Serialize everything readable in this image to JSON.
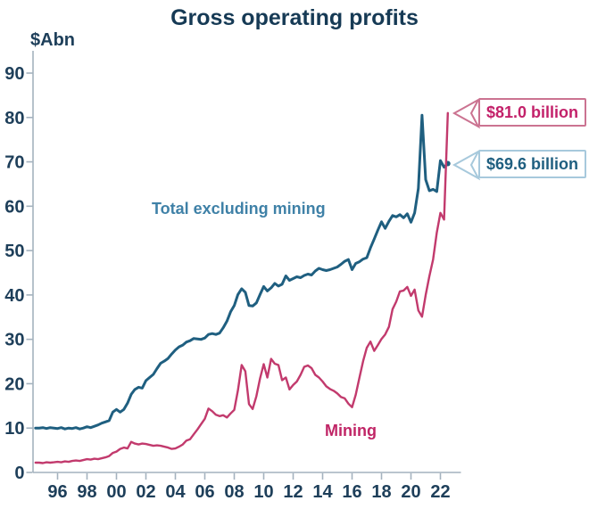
{
  "chart_data": {
    "type": "line",
    "title": "Gross operating profits",
    "ylabel": "$Abn",
    "xlabel": "",
    "ylim": [
      0,
      90
    ],
    "y_ticks": [
      0,
      10,
      20,
      30,
      40,
      50,
      60,
      70,
      80,
      90
    ],
    "x_tick_years": [
      1996,
      1998,
      2000,
      2002,
      2004,
      2006,
      2008,
      2010,
      2012,
      2014,
      2016,
      2018,
      2020,
      2022
    ],
    "x_tick_labels": [
      "96",
      "98",
      "00",
      "02",
      "04",
      "06",
      "08",
      "10",
      "12",
      "14",
      "16",
      "18",
      "20",
      "22"
    ],
    "grid": false,
    "legend_position": "inline-labels",
    "axis_color": "#a4b2be",
    "text_color": "#1e3f5a",
    "x_start": 1994.5,
    "x_step": 0.25,
    "series": [
      {
        "name": "Total excluding mining",
        "color": "#1f5f80",
        "label_color": "#3f81a7",
        "line_width": 3,
        "end_dot": true,
        "final_value_label": "$69.6 billion",
        "values": [
          10.0,
          10.0,
          10.1,
          9.9,
          10.1,
          10.0,
          9.9,
          10.1,
          9.8,
          10.0,
          9.9,
          10.1,
          9.8,
          10.0,
          10.3,
          10.1,
          10.4,
          10.7,
          11.1,
          11.4,
          11.7,
          13.6,
          14.2,
          13.6,
          14.2,
          15.6,
          17.6,
          18.7,
          19.2,
          19.0,
          20.7,
          21.4,
          22.1,
          23.4,
          24.6,
          25.1,
          25.7,
          26.7,
          27.6,
          28.3,
          28.7,
          29.4,
          29.7,
          30.2,
          30.1,
          30.0,
          30.3,
          31.1,
          31.3,
          31.1,
          31.4,
          32.6,
          34.1,
          36.2,
          37.6,
          40.1,
          41.4,
          40.6,
          37.6,
          37.5,
          38.2,
          40.1,
          41.9,
          40.9,
          41.6,
          42.6,
          42.0,
          42.4,
          44.3,
          43.3,
          43.7,
          44.1,
          43.9,
          44.4,
          44.7,
          44.5,
          45.4,
          46.0,
          45.7,
          45.5,
          45.7,
          46.0,
          46.3,
          46.9,
          47.6,
          48.0,
          45.7,
          47.1,
          47.5,
          48.1,
          48.4,
          50.6,
          52.6,
          54.6,
          56.5,
          55.0,
          56.6,
          57.9,
          57.6,
          58.1,
          57.4,
          58.3,
          56.4,
          58.5,
          64.0,
          80.5,
          66.0,
          63.5,
          63.8,
          63.3,
          70.3,
          68.8,
          69.6
        ]
      },
      {
        "name": "Mining",
        "color": "#c23a6d",
        "label_color": "#c02566",
        "line_width": 2.4,
        "end_dot": false,
        "final_value_label": "$81.0 billion",
        "values": [
          2.2,
          2.2,
          2.1,
          2.3,
          2.2,
          2.3,
          2.4,
          2.3,
          2.5,
          2.4,
          2.6,
          2.7,
          2.6,
          2.8,
          3.0,
          2.9,
          3.1,
          3.0,
          3.2,
          3.4,
          3.7,
          4.4,
          4.7,
          5.3,
          5.6,
          5.4,
          6.9,
          6.5,
          6.3,
          6.5,
          6.4,
          6.2,
          6.0,
          6.1,
          6.0,
          5.8,
          5.6,
          5.3,
          5.4,
          5.8,
          6.3,
          7.2,
          7.5,
          8.6,
          9.7,
          10.9,
          12.1,
          14.4,
          13.8,
          13.0,
          12.7,
          12.9,
          12.4,
          13.3,
          14.1,
          18.5,
          24.2,
          22.8,
          15.4,
          14.3,
          17.2,
          21.2,
          24.4,
          21.4,
          25.6,
          24.5,
          24.2,
          20.8,
          21.4,
          18.7,
          19.7,
          20.5,
          22.0,
          23.8,
          24.1,
          23.5,
          22.0,
          21.4,
          20.5,
          19.4,
          18.8,
          18.4,
          17.8,
          17.0,
          16.7,
          15.5,
          14.7,
          17.5,
          21.4,
          25.1,
          28.1,
          29.5,
          27.4,
          28.7,
          30.1,
          31.1,
          32.8,
          36.8,
          38.5,
          40.8,
          41.0,
          41.8,
          39.8,
          41.2,
          36.5,
          35.1,
          40.0,
          44.2,
          48.0,
          54.0,
          58.5,
          57.0,
          81.0
        ]
      }
    ],
    "callouts": [
      {
        "text": "$81.0 billion",
        "series": "Mining",
        "text_color": "#c3216a",
        "border_color": "#cb7391"
      },
      {
        "text": "$69.6 billion",
        "series": "Total excluding mining",
        "text_color": "#1f5f80",
        "border_color": "#a7c9dc"
      }
    ]
  }
}
